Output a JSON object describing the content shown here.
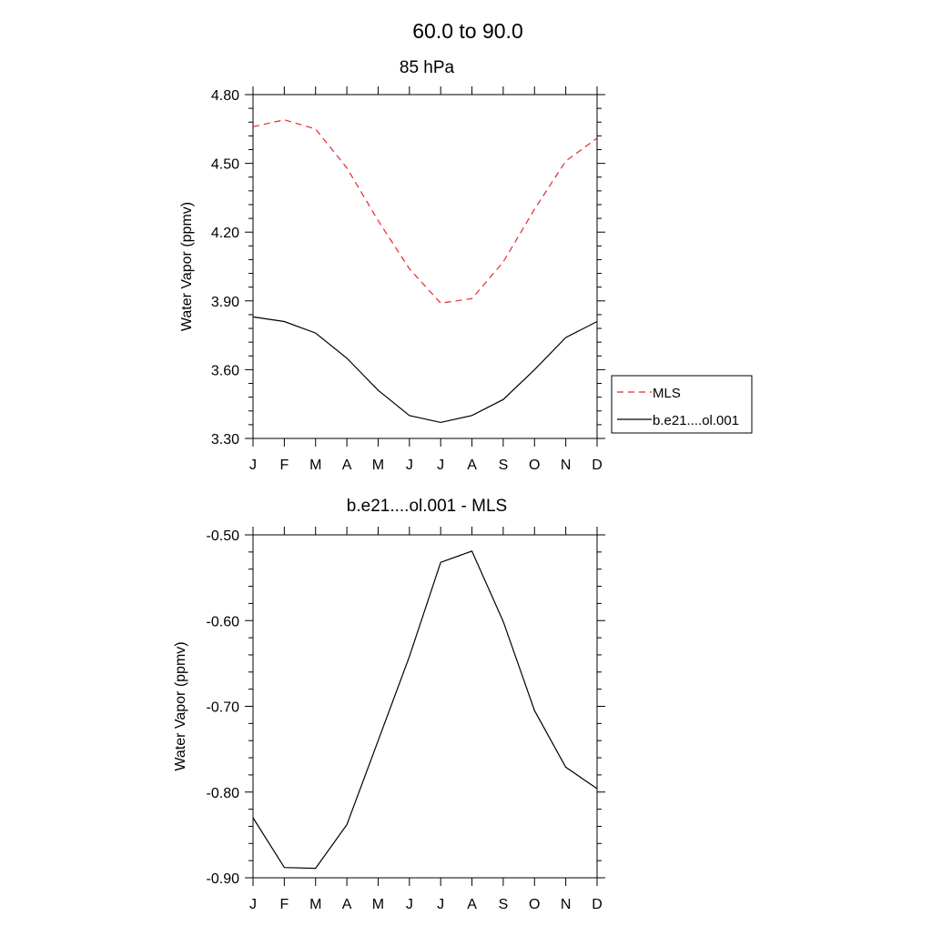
{
  "figure": {
    "title": "60.0 to  90.0"
  },
  "legend": {
    "entries": [
      {
        "label": "MLS",
        "color": "#e8262b",
        "dash": "dashed"
      },
      {
        "label": "b.e21....ol.001",
        "color": "#000000",
        "dash": "solid"
      }
    ]
  },
  "chart_data": [
    {
      "type": "line",
      "title": "85 hPa",
      "xlabel": "",
      "ylabel": "Water Vapor (ppmv)",
      "categories": [
        "J",
        "F",
        "M",
        "A",
        "M",
        "J",
        "J",
        "A",
        "S",
        "O",
        "N",
        "D"
      ],
      "ylim": [
        3.3,
        4.8
      ],
      "yticks": [
        3.3,
        3.6,
        3.9,
        4.2,
        4.5,
        4.8
      ],
      "ytick_labels": [
        "3.30",
        "3.60",
        "3.90",
        "4.20",
        "4.50",
        "4.80"
      ],
      "legend_position": "right",
      "series": [
        {
          "name": "MLS",
          "color": "#e8262b",
          "dash": "dashed",
          "values": [
            4.66,
            4.69,
            4.65,
            4.48,
            4.25,
            4.04,
            3.89,
            3.91,
            4.07,
            4.3,
            4.51,
            4.61
          ]
        },
        {
          "name": "b.e21....ol.001",
          "color": "#000000",
          "dash": "solid",
          "values": [
            3.83,
            3.81,
            3.76,
            3.65,
            3.51,
            3.4,
            3.37,
            3.4,
            3.47,
            3.6,
            3.74,
            3.81
          ]
        }
      ]
    },
    {
      "type": "line",
      "title": "b.e21....ol.001 - MLS",
      "xlabel": "",
      "ylabel": "Water Vapor (ppmv)",
      "categories": [
        "J",
        "F",
        "M",
        "A",
        "M",
        "J",
        "J",
        "A",
        "S",
        "O",
        "N",
        "D"
      ],
      "ylim": [
        -0.9,
        -0.5
      ],
      "yticks": [
        -0.9,
        -0.8,
        -0.7,
        -0.6,
        -0.5
      ],
      "ytick_labels": [
        "-0.90",
        "-0.80",
        "-0.70",
        "-0.60",
        "-0.50"
      ],
      "series": [
        {
          "color": "#000000",
          "dash": "solid",
          "values": [
            -0.83,
            -0.888,
            -0.889,
            -0.838,
            -0.74,
            -0.642,
            -0.532,
            -0.519,
            -0.601,
            -0.705,
            -0.771,
            -0.796
          ]
        }
      ]
    }
  ]
}
